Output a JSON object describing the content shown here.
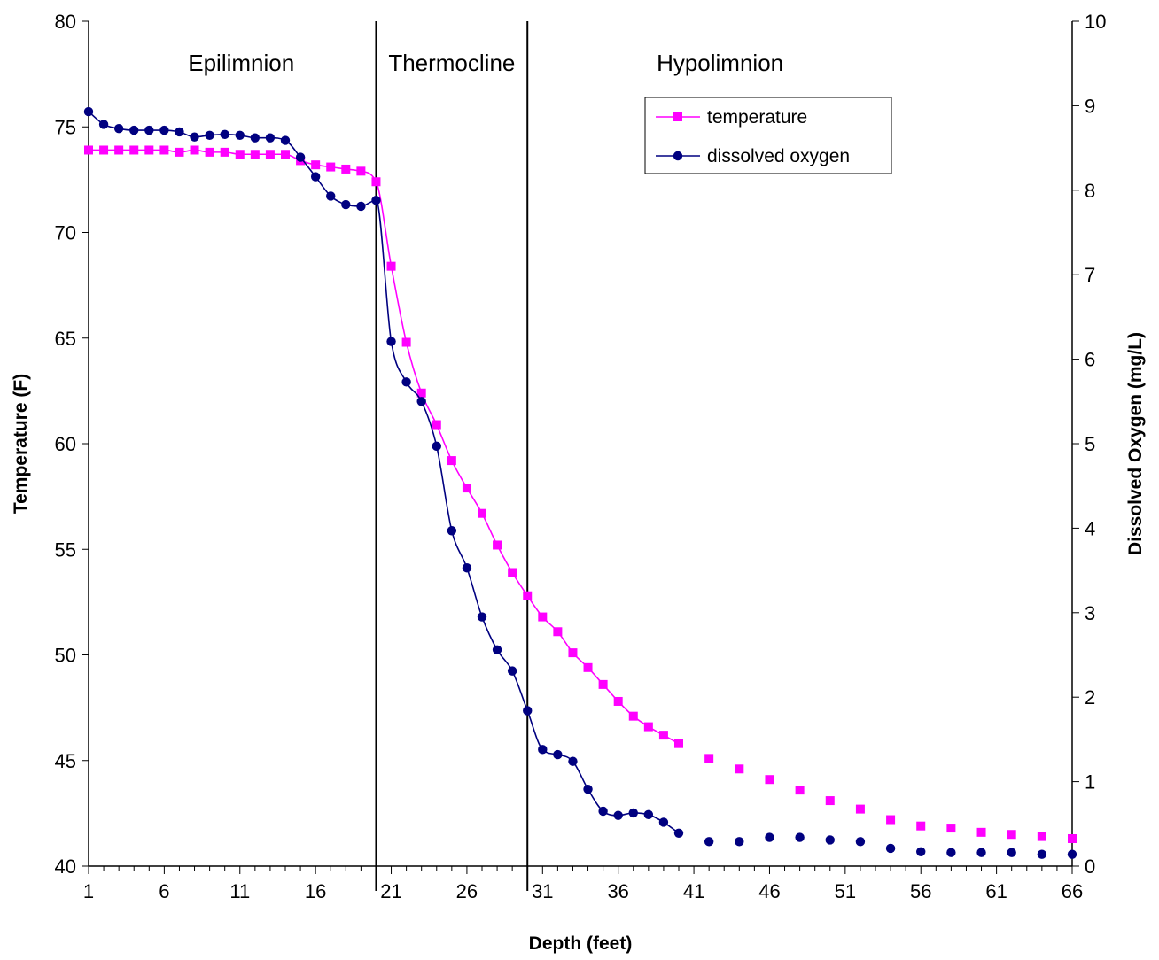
{
  "chart_data": {
    "type": "line",
    "xlabel": "Depth (feet)",
    "ylabel": "Temperature (F)",
    "y2label": "Dissolved Oxygen (mg/L)",
    "xlim": [
      1,
      66
    ],
    "ylim": [
      40,
      80
    ],
    "y2lim": [
      0,
      10
    ],
    "x_ticks": [
      1,
      6,
      11,
      16,
      21,
      26,
      31,
      36,
      41,
      46,
      51,
      56,
      61,
      66
    ],
    "y_ticks": [
      40,
      45,
      50,
      55,
      60,
      65,
      70,
      75,
      80
    ],
    "y2_ticks": [
      0,
      1,
      2,
      3,
      4,
      5,
      6,
      7,
      8,
      9,
      10
    ],
    "grid": false,
    "legend_position": "top-right",
    "zones": [
      {
        "label": "Epilimnion"
      },
      {
        "label": "Thermocline"
      },
      {
        "label": "Hypolimnion"
      }
    ],
    "boundaries": [
      20,
      30
    ],
    "series": [
      {
        "name": "temperature",
        "axis": "left",
        "color": "#ff00ff",
        "marker": "square",
        "x": [
          1,
          2,
          3,
          4,
          5,
          6,
          7,
          8,
          9,
          10,
          11,
          12,
          13,
          14,
          15,
          16,
          17,
          18,
          19,
          20,
          21,
          22,
          23,
          24,
          25,
          26,
          27,
          28,
          29,
          30,
          31,
          32,
          33,
          34,
          35,
          36,
          37,
          38,
          39,
          40,
          42,
          44,
          46,
          48,
          50,
          52,
          54,
          56,
          58,
          60,
          62,
          64,
          66
        ],
        "values": [
          73.9,
          73.9,
          73.9,
          73.9,
          73.9,
          73.9,
          73.8,
          73.9,
          73.8,
          73.8,
          73.7,
          73.7,
          73.7,
          73.7,
          73.4,
          73.2,
          73.1,
          73.0,
          72.9,
          72.4,
          68.4,
          64.8,
          62.4,
          60.9,
          59.2,
          57.9,
          56.7,
          55.2,
          53.9,
          52.8,
          51.8,
          51.1,
          50.1,
          49.4,
          48.6,
          47.8,
          47.1,
          46.6,
          46.2,
          45.8,
          45.1,
          44.6,
          44.1,
          43.6,
          43.1,
          42.7,
          42.2,
          41.9,
          41.8,
          41.6,
          41.5,
          41.4,
          41.3
        ]
      },
      {
        "name": "dissolved oxygen",
        "axis": "right",
        "color": "#000080",
        "marker": "circle",
        "x": [
          1,
          2,
          3,
          4,
          5,
          6,
          7,
          8,
          9,
          10,
          11,
          12,
          13,
          14,
          15,
          16,
          17,
          18,
          19,
          20,
          21,
          22,
          23,
          24,
          25,
          26,
          27,
          28,
          29,
          30,
          31,
          32,
          33,
          34,
          35,
          36,
          37,
          38,
          39,
          40,
          42,
          44,
          46,
          48,
          50,
          52,
          54,
          56,
          58,
          60,
          62,
          64,
          66
        ],
        "values": [
          8.93,
          8.78,
          8.73,
          8.71,
          8.71,
          8.71,
          8.69,
          8.63,
          8.65,
          8.66,
          8.65,
          8.62,
          8.62,
          8.59,
          8.39,
          8.16,
          7.93,
          7.83,
          7.81,
          7.88,
          6.21,
          5.73,
          5.5,
          4.97,
          3.97,
          3.53,
          2.95,
          2.56,
          2.31,
          1.84,
          1.38,
          1.32,
          1.24,
          0.91,
          0.65,
          0.6,
          0.63,
          0.61,
          0.52,
          0.39,
          0.29,
          0.29,
          0.34,
          0.34,
          0.31,
          0.29,
          0.21,
          0.17,
          0.16,
          0.16,
          0.16,
          0.14,
          0.14
        ]
      }
    ],
    "connected_through": 40
  }
}
